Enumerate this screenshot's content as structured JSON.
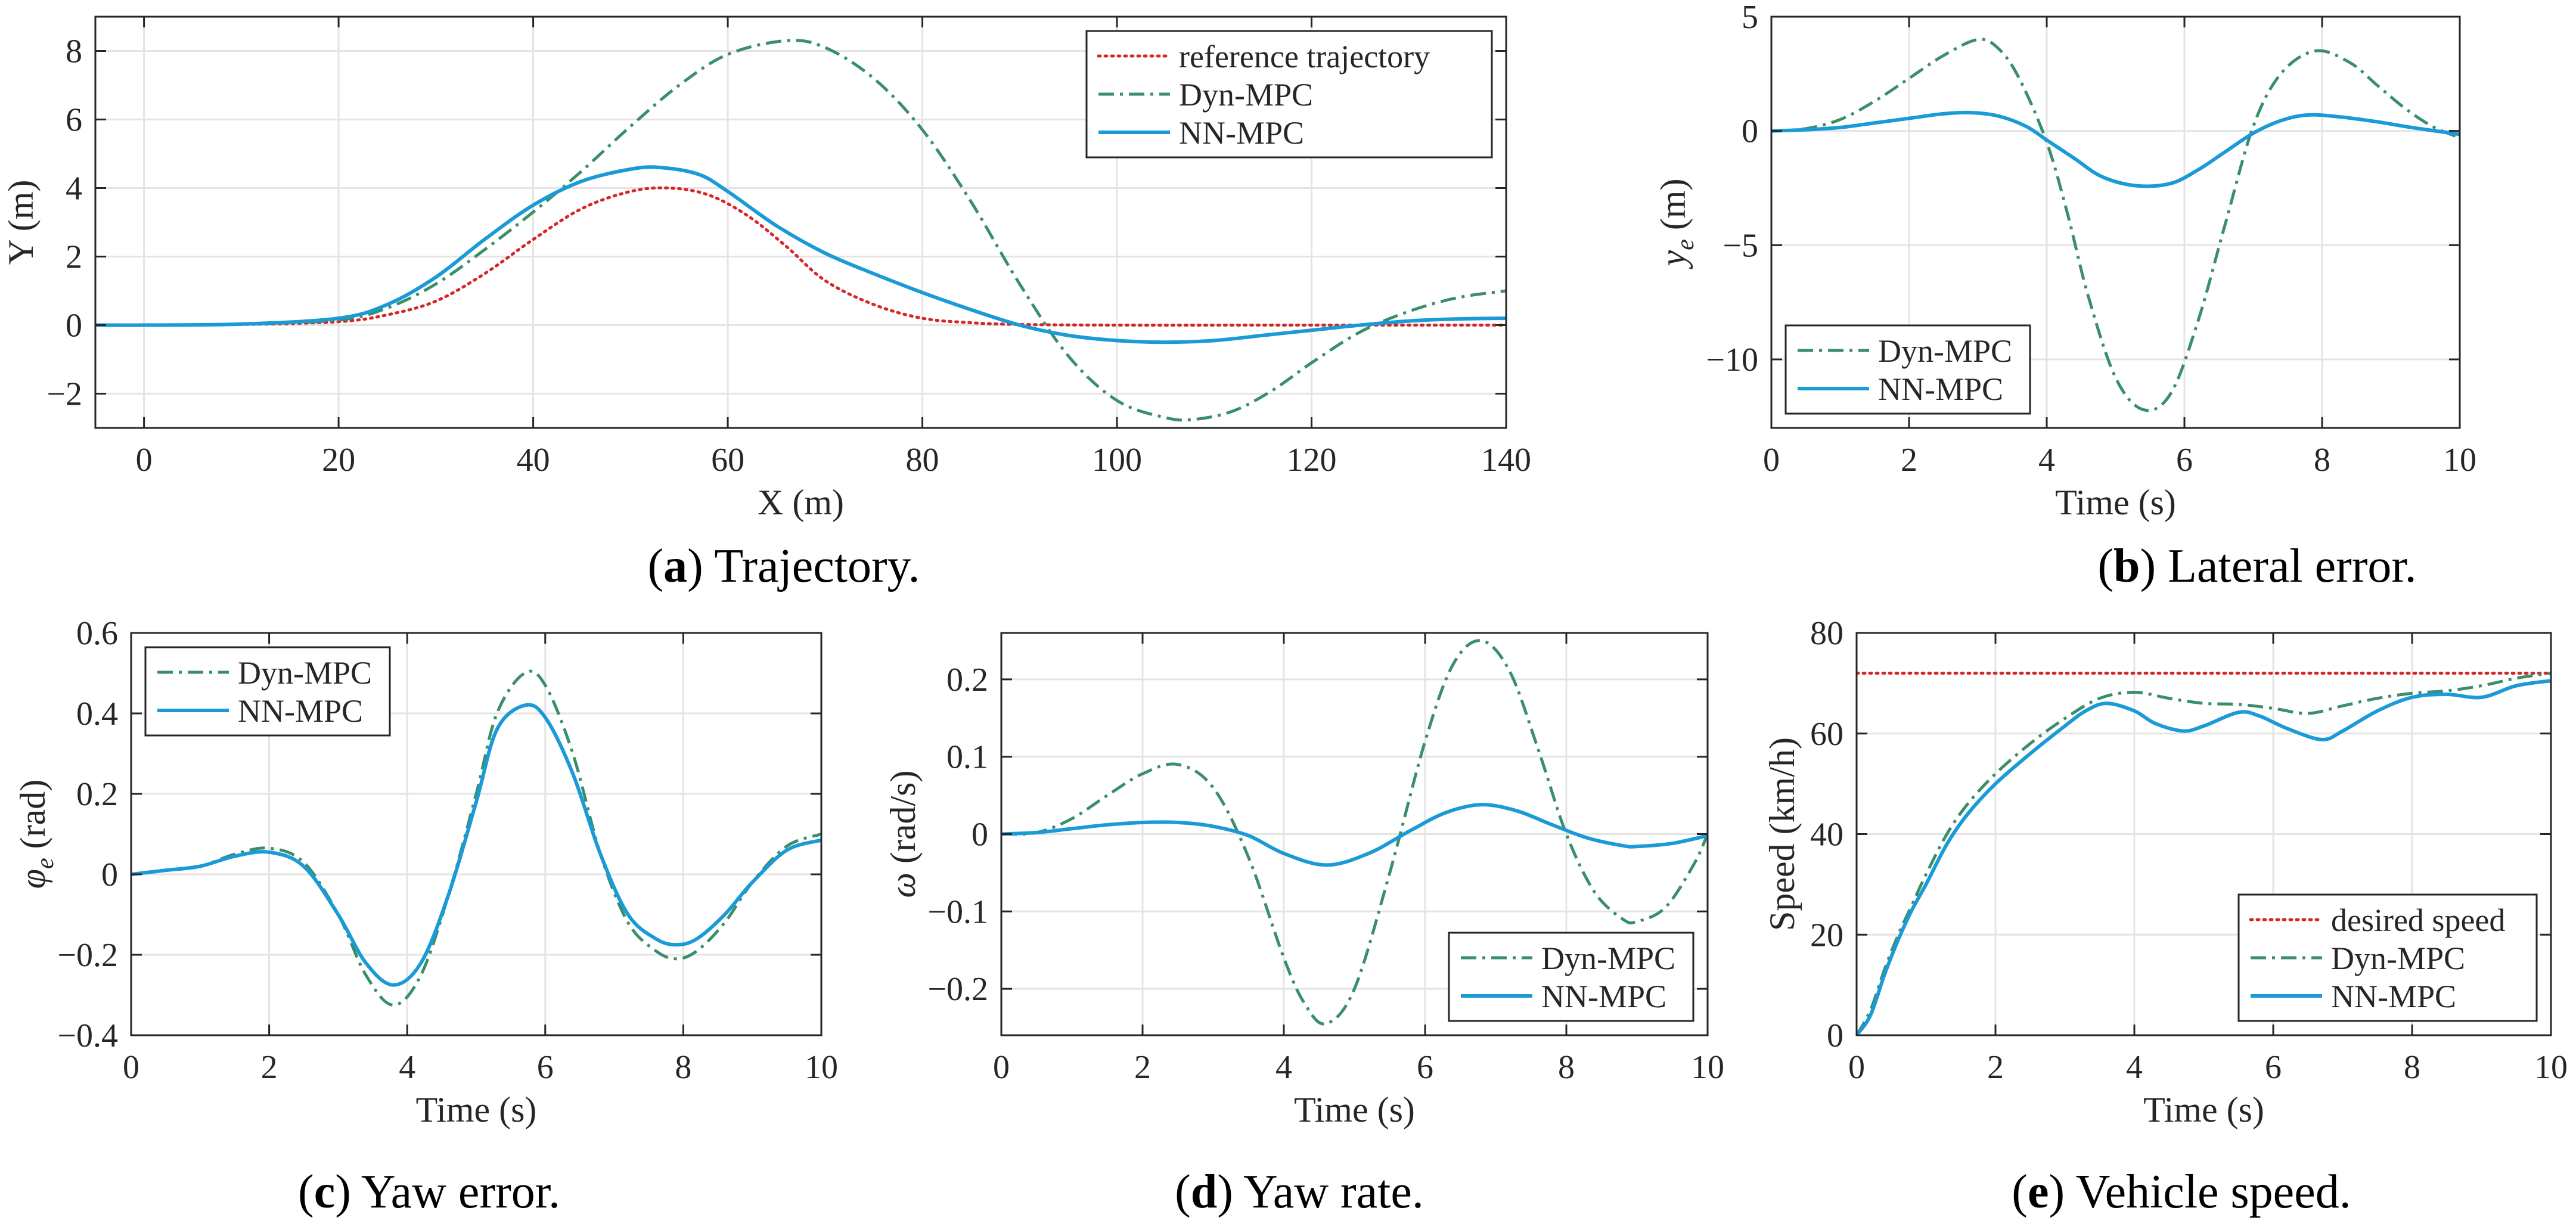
{
  "colors": {
    "reference": "#d62728",
    "dyn": "#3a8f6a",
    "nn": "#1a9ad6",
    "axis": "#262626",
    "grid": "#e4e4e4"
  },
  "captions": [
    {
      "letter": "a",
      "text": "Trajectory."
    },
    {
      "letter": "b",
      "text": "Lateral error."
    },
    {
      "letter": "c",
      "text": "Yaw error."
    },
    {
      "letter": "d",
      "text": "Yaw rate."
    },
    {
      "letter": "e",
      "text": "Vehicle speed."
    }
  ],
  "chart_data": [
    {
      "id": "a",
      "type": "line",
      "title": "",
      "xlabel": "X (m)",
      "ylabel": "Y (m)",
      "xlim": [
        -5,
        140
      ],
      "ylim": [
        -3,
        9
      ],
      "xticks": [
        0,
        20,
        40,
        60,
        80,
        100,
        120,
        140
      ],
      "yticks": [
        -2,
        0,
        2,
        4,
        6,
        8
      ],
      "ytick_labels": [
        "−2",
        "0",
        "2",
        "4",
        "6",
        "8"
      ],
      "grid": true,
      "legend": "top-right",
      "series": [
        {
          "name": "reference trajectory",
          "style": "reference",
          "x": [
            -5,
            0,
            10,
            20,
            25,
            30,
            35,
            40,
            45,
            50,
            54,
            58,
            62,
            66,
            70,
            75,
            80,
            85,
            90,
            100,
            120,
            140
          ],
          "y": [
            0,
            0,
            0.02,
            0.1,
            0.3,
            0.7,
            1.5,
            2.5,
            3.4,
            3.9,
            4.0,
            3.8,
            3.2,
            2.3,
            1.3,
            0.6,
            0.2,
            0.07,
            0.02,
            0,
            0,
            0
          ]
        },
        {
          "name": "Dyn-MPC",
          "style": "dyn",
          "x": [
            -5,
            0,
            10,
            20,
            25,
            30,
            35,
            40,
            45,
            50,
            55,
            60,
            66,
            70,
            75,
            80,
            85,
            90,
            95,
            100,
            105,
            108,
            112,
            116,
            120,
            125,
            130,
            135,
            140
          ],
          "y": [
            0,
            0,
            0.03,
            0.15,
            0.5,
            1.2,
            2.2,
            3.3,
            4.5,
            5.8,
            7.0,
            7.9,
            8.3,
            8.1,
            7.2,
            5.7,
            3.6,
            1.2,
            -0.9,
            -2.2,
            -2.7,
            -2.75,
            -2.5,
            -1.9,
            -1.1,
            -0.2,
            0.4,
            0.8,
            1.0
          ]
        },
        {
          "name": "NN-MPC",
          "style": "nn",
          "x": [
            -5,
            0,
            10,
            20,
            25,
            30,
            35,
            40,
            45,
            50,
            53,
            57,
            60,
            65,
            70,
            75,
            80,
            85,
            90,
            95,
            100,
            105,
            110,
            115,
            120,
            125,
            130,
            135,
            140
          ],
          "y": [
            0,
            0,
            0.03,
            0.2,
            0.6,
            1.4,
            2.5,
            3.5,
            4.2,
            4.55,
            4.6,
            4.4,
            3.9,
            2.9,
            2.1,
            1.5,
            0.95,
            0.45,
            0.0,
            -0.3,
            -0.45,
            -0.5,
            -0.45,
            -0.3,
            -0.15,
            0.0,
            0.12,
            0.18,
            0.2
          ]
        }
      ]
    },
    {
      "id": "b",
      "type": "line",
      "title": "",
      "xlabel": "Time (s)",
      "ylabel": "yₑ (m)",
      "ylabel_main": "y",
      "ylabel_sub": "e",
      "ylabel_unit": "(m)",
      "xlim": [
        0,
        10
      ],
      "ylim": [
        -13,
        5
      ],
      "xticks": [
        0,
        2,
        4,
        6,
        8,
        10
      ],
      "yticks": [
        -10,
        -5,
        0,
        5
      ],
      "ytick_labels": [
        "−10",
        "−5",
        "0",
        "5"
      ],
      "grid": true,
      "legend": "bottom-left",
      "series": [
        {
          "name": "Dyn-MPC",
          "style": "dyn",
          "x": [
            0,
            0.5,
            1,
            1.5,
            2,
            2.5,
            3.0,
            3.3,
            3.6,
            4.0,
            4.3,
            4.6,
            5.0,
            5.4,
            5.8,
            6.2,
            6.6,
            7.0,
            7.4,
            7.9,
            8.4,
            8.8,
            9.2,
            9.6,
            10
          ],
          "y": [
            0,
            0.1,
            0.5,
            1.3,
            2.3,
            3.3,
            4.0,
            3.6,
            2.3,
            -0.5,
            -3.6,
            -7.2,
            -10.8,
            -12.2,
            -11.5,
            -8.3,
            -4.0,
            0.2,
            2.5,
            3.5,
            3.0,
            2.0,
            1.0,
            0.2,
            -0.3
          ]
        },
        {
          "name": "NN-MPC",
          "style": "nn",
          "x": [
            0,
            0.5,
            1,
            1.5,
            2,
            2.5,
            2.9,
            3.3,
            3.7,
            4.0,
            4.4,
            4.8,
            5.3,
            5.8,
            6.2,
            6.6,
            7.0,
            7.4,
            7.8,
            8.3,
            8.8,
            9.3,
            10
          ],
          "y": [
            0,
            0.05,
            0.15,
            0.35,
            0.55,
            0.75,
            0.8,
            0.65,
            0.2,
            -0.4,
            -1.2,
            -2.0,
            -2.4,
            -2.3,
            -1.7,
            -0.9,
            -0.1,
            0.45,
            0.7,
            0.6,
            0.4,
            0.15,
            -0.15
          ]
        }
      ]
    },
    {
      "id": "c",
      "type": "line",
      "title": "",
      "xlabel": "Time (s)",
      "ylabel": "φₑ (rad)",
      "ylabel_main": "φ",
      "ylabel_sub": "e",
      "ylabel_unit": "(rad)",
      "xlim": [
        0,
        10
      ],
      "ylim": [
        -0.4,
        0.6
      ],
      "xticks": [
        0,
        2,
        4,
        6,
        8,
        10
      ],
      "yticks": [
        -0.4,
        -0.2,
        0,
        0.2,
        0.4,
        0.6
      ],
      "ytick_labels": [
        "−0.4",
        "−0.2",
        "0",
        "0.2",
        "0.4",
        "0.6"
      ],
      "grid": true,
      "legend": "top-left",
      "series": [
        {
          "name": "Dyn-MPC",
          "style": "dyn",
          "x": [
            0,
            0.5,
            1,
            1.5,
            2,
            2.5,
            3.0,
            3.4,
            3.8,
            4.2,
            4.6,
            5.0,
            5.3,
            5.7,
            6.0,
            6.4,
            6.8,
            7.2,
            7.6,
            7.9,
            8.2,
            8.6,
            9.0,
            9.5,
            10
          ],
          "y": [
            0,
            0.01,
            0.02,
            0.05,
            0.065,
            0.03,
            -0.1,
            -0.25,
            -0.325,
            -0.25,
            -0.05,
            0.2,
            0.4,
            0.5,
            0.47,
            0.3,
            0.05,
            -0.12,
            -0.19,
            -0.21,
            -0.19,
            -0.12,
            -0.02,
            0.07,
            0.1
          ]
        },
        {
          "name": "NN-MPC",
          "style": "nn",
          "x": [
            0,
            0.5,
            1,
            1.5,
            2,
            2.5,
            3.0,
            3.4,
            3.8,
            4.2,
            4.6,
            5.0,
            5.3,
            5.7,
            6.0,
            6.4,
            6.8,
            7.2,
            7.6,
            7.9,
            8.2,
            8.6,
            9.0,
            9.5,
            10
          ],
          "y": [
            0,
            0.01,
            0.02,
            0.045,
            0.055,
            0.02,
            -0.1,
            -0.22,
            -0.275,
            -0.22,
            -0.05,
            0.18,
            0.36,
            0.42,
            0.39,
            0.25,
            0.05,
            -0.1,
            -0.16,
            -0.175,
            -0.16,
            -0.1,
            -0.02,
            0.06,
            0.085
          ]
        }
      ]
    },
    {
      "id": "d",
      "type": "line",
      "title": "",
      "xlabel": "Time (s)",
      "ylabel": "ω (rad/s)",
      "ylabel_main": "ω",
      "ylabel_sub": "",
      "ylabel_unit": "(rad/s)",
      "xlim": [
        0,
        10
      ],
      "ylim": [
        -0.26,
        0.26
      ],
      "xticks": [
        0,
        2,
        4,
        6,
        8,
        10
      ],
      "yticks": [
        -0.2,
        -0.1,
        0,
        0.1,
        0.2
      ],
      "ytick_labels": [
        "−0.2",
        "−0.1",
        "0",
        "0.1",
        "0.2"
      ],
      "grid": true,
      "legend": "bottom-right",
      "series": [
        {
          "name": "Dyn-MPC",
          "style": "dyn",
          "x": [
            0,
            0.5,
            1,
            1.5,
            2,
            2.5,
            3.0,
            3.5,
            4.0,
            4.3,
            4.6,
            5.0,
            5.5,
            6.0,
            6.4,
            6.8,
            7.2,
            7.6,
            8.0,
            8.4,
            8.8,
            9.0,
            9.4,
            9.8,
            10
          ],
          "y": [
            0,
            0.002,
            0.02,
            0.05,
            0.078,
            0.09,
            0.06,
            -0.03,
            -0.16,
            -0.22,
            -0.245,
            -0.2,
            -0.05,
            0.12,
            0.22,
            0.25,
            0.21,
            0.11,
            0.0,
            -0.075,
            -0.11,
            -0.113,
            -0.095,
            -0.04,
            0
          ]
        },
        {
          "name": "NN-MPC",
          "style": "nn",
          "x": [
            0,
            0.5,
            1,
            1.5,
            2,
            2.5,
            3.0,
            3.5,
            4.0,
            4.6,
            5.2,
            5.8,
            6.3,
            6.8,
            7.3,
            7.8,
            8.3,
            8.8,
            9.0,
            9.5,
            10
          ],
          "y": [
            0,
            0.002,
            0.007,
            0.012,
            0.015,
            0.015,
            0.01,
            -0.002,
            -0.025,
            -0.04,
            -0.025,
            0.005,
            0.028,
            0.038,
            0.03,
            0.012,
            -0.005,
            -0.015,
            -0.016,
            -0.012,
            -0.002
          ]
        }
      ]
    },
    {
      "id": "e",
      "type": "line",
      "title": "",
      "xlabel": "Time (s)",
      "ylabel": "Speed (km/h)",
      "ylabel_main": "Speed (km/h)",
      "ylabel_sub": "",
      "ylabel_unit": "",
      "xlim": [
        0,
        10
      ],
      "ylim": [
        0,
        80
      ],
      "xticks": [
        0,
        2,
        4,
        6,
        8,
        10
      ],
      "yticks": [
        0,
        20,
        40,
        60,
        80
      ],
      "ytick_labels": [
        "0",
        "20",
        "40",
        "60",
        "80"
      ],
      "grid": true,
      "legend": "bottom-right",
      "series": [
        {
          "name": "desired speed",
          "style": "reference",
          "x": [
            0,
            10
          ],
          "y": [
            72,
            72
          ]
        },
        {
          "name": "Dyn-MPC",
          "style": "dyn",
          "x": [
            0,
            0.2,
            0.4,
            0.6,
            0.8,
            1.0,
            1.3,
            1.6,
            2.0,
            2.5,
            3.0,
            3.5,
            4.0,
            4.5,
            5.0,
            5.5,
            6.0,
            6.5,
            7.0,
            7.5,
            8.0,
            8.5,
            9.0,
            9.5,
            10
          ],
          "y": [
            0,
            5,
            13,
            20,
            26,
            32,
            40,
            46,
            52,
            58,
            63,
            67,
            68.2,
            67,
            66,
            65.8,
            65,
            64,
            65.5,
            67,
            68,
            68.5,
            69.5,
            71,
            72
          ]
        },
        {
          "name": "NN-MPC",
          "style": "nn",
          "x": [
            0,
            0.2,
            0.4,
            0.6,
            0.8,
            1.0,
            1.3,
            1.6,
            2.0,
            2.5,
            3.0,
            3.3,
            3.6,
            4.0,
            4.3,
            4.7,
            5.0,
            5.5,
            5.8,
            6.2,
            6.7,
            7.0,
            7.5,
            8.0,
            8.5,
            9.0,
            9.5,
            10
          ],
          "y": [
            0,
            4,
            12,
            19,
            25,
            30,
            38,
            44,
            50,
            56,
            61.5,
            64.5,
            66,
            64.5,
            62,
            60.5,
            61.5,
            64.2,
            63.5,
            61,
            58.8,
            60.5,
            64.5,
            67.2,
            67.8,
            67.2,
            69.5,
            70.5
          ]
        }
      ]
    }
  ]
}
